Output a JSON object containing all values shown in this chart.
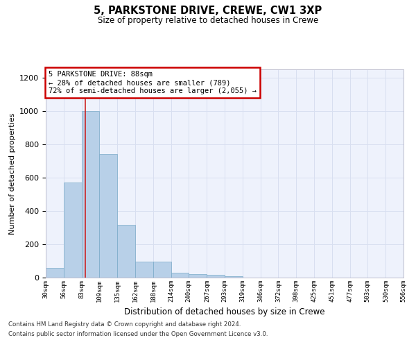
{
  "title1": "5, PARKSTONE DRIVE, CREWE, CW1 3XP",
  "title2": "Size of property relative to detached houses in Crewe",
  "xlabel": "Distribution of detached houses by size in Crewe",
  "ylabel": "Number of detached properties",
  "bins": [
    30,
    56,
    83,
    109,
    135,
    162,
    188,
    214,
    240,
    267,
    293,
    319,
    346,
    372,
    398,
    425,
    451,
    477,
    503,
    530,
    556
  ],
  "counts": [
    58,
    570,
    1000,
    740,
    315,
    95,
    95,
    30,
    20,
    15,
    8,
    0,
    0,
    0,
    0,
    0,
    0,
    0,
    0,
    0
  ],
  "bar_color": "#b8d0e8",
  "bar_edge_color": "#7aaac8",
  "property_size": 88,
  "annotation_line1": "5 PARKSTONE DRIVE: 88sqm",
  "annotation_line2": "← 28% of detached houses are smaller (789)",
  "annotation_line3": "72% of semi-detached houses are larger (2,055) →",
  "annotation_box_color": "#ffffff",
  "annotation_box_edge": "#cc0000",
  "red_line_color": "#cc2222",
  "ylim": [
    0,
    1250
  ],
  "yticks": [
    0,
    200,
    400,
    600,
    800,
    1000,
    1200
  ],
  "grid_color": "#d8dff0",
  "background_color": "#eef2fc",
  "footer1": "Contains HM Land Registry data © Crown copyright and database right 2024.",
  "footer2": "Contains public sector information licensed under the Open Government Licence v3.0."
}
